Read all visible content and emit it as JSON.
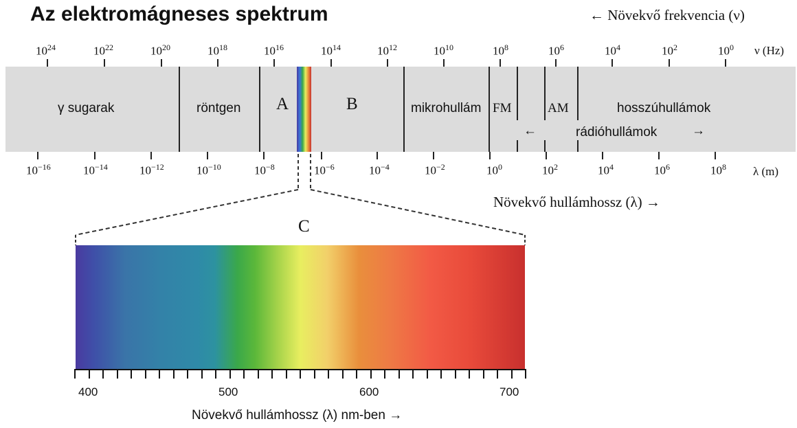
{
  "title": "Az elektromágneses spektrum",
  "freq_axis": {
    "title": "← Növekvő frekvencia (ν)",
    "unit": "ν (Hz)",
    "ticks": [
      {
        "base": "10",
        "exp": "24"
      },
      {
        "base": "10",
        "exp": "22"
      },
      {
        "base": "10",
        "exp": "20"
      },
      {
        "base": "10",
        "exp": "18"
      },
      {
        "base": "10",
        "exp": "16"
      },
      {
        "base": "10",
        "exp": "14"
      },
      {
        "base": "10",
        "exp": "12"
      },
      {
        "base": "10",
        "exp": "10"
      },
      {
        "base": "10",
        "exp": "8"
      },
      {
        "base": "10",
        "exp": "6"
      },
      {
        "base": "10",
        "exp": "4"
      },
      {
        "base": "10",
        "exp": "2"
      },
      {
        "base": "10",
        "exp": "0"
      }
    ]
  },
  "wl_axis": {
    "title": "Növekvő hullámhossz (λ)   →",
    "unit": "λ (m)",
    "ticks": [
      {
        "base": "10",
        "exp": "−16"
      },
      {
        "base": "10",
        "exp": "−14"
      },
      {
        "base": "10",
        "exp": "−12"
      },
      {
        "base": "10",
        "exp": "−10"
      },
      {
        "base": "10",
        "exp": "−8"
      },
      {
        "base": "10",
        "exp": "−6"
      },
      {
        "base": "10",
        "exp": "−4"
      },
      {
        "base": "10",
        "exp": "−2"
      },
      {
        "base": "10",
        "exp": "0"
      },
      {
        "base": "10",
        "exp": "2"
      },
      {
        "base": "10",
        "exp": "4"
      },
      {
        "base": "10",
        "exp": "6"
      },
      {
        "base": "10",
        "exp": "8"
      }
    ]
  },
  "bands": {
    "gamma": "γ sugarak",
    "xray": "röntgen",
    "microwave": "mikrohullám",
    "fm": "FM",
    "am": "AM",
    "longwave": "hosszúhullámok",
    "radio": "rádióhullámok",
    "radio_left_arrow": "←",
    "radio_right_arrow": "→"
  },
  "letters": {
    "a": "A",
    "b": "B",
    "c": "C"
  },
  "visible": {
    "scale_labels": [
      "400",
      "500",
      "600",
      "700"
    ],
    "axis_title": "Növekvő hullámhossz (λ) nm-ben   →"
  },
  "colors": {
    "strip": "#dcdcdc",
    "violet": "#4a3aa0",
    "blue": "#3382a8",
    "green": "#3aa84a",
    "yellow": "#e8ee60",
    "orange": "#e98f3c",
    "red": "#c8302e"
  }
}
